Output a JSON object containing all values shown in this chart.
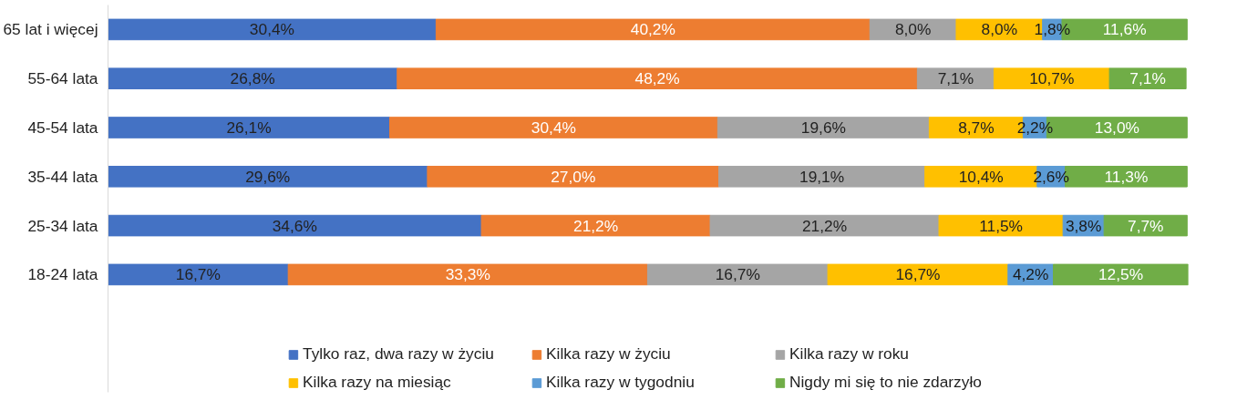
{
  "chart_data": {
    "type": "bar",
    "orientation": "horizontal",
    "stacked": true,
    "legend": "bottom",
    "grid": false,
    "categories": [
      "65 lat i więcej",
      "55-64 lata",
      "45-54 lata",
      "35-44 lata",
      "25-34 lata",
      "18-24 lata"
    ],
    "series": [
      {
        "name": "Tylko raz, dwa razy w życiu",
        "color": "#4472c4",
        "values": [
          30.4,
          26.8,
          26.1,
          29.6,
          34.6,
          16.7
        ],
        "value_labels": [
          "30,4%",
          "26,8%",
          "26,1%",
          "29,6%",
          "34,6%",
          "16,7%"
        ]
      },
      {
        "name": "Kilka razy w życiu",
        "color": "#ed7d31",
        "values": [
          40.2,
          48.2,
          30.4,
          27.0,
          21.2,
          33.3
        ],
        "value_labels": [
          "40,2%",
          "48,2%",
          "30,4%",
          "27,0%",
          "21,2%",
          "33,3%"
        ]
      },
      {
        "name": "Kilka razy w roku",
        "color": "#a5a5a5",
        "values": [
          8.0,
          7.1,
          19.6,
          19.1,
          21.2,
          16.7
        ],
        "value_labels": [
          "8,0%",
          "7,1%",
          "19,6%",
          "19,1%",
          "21,2%",
          "16,7%"
        ]
      },
      {
        "name": "Kilka razy na miesiąc",
        "color": "#ffc000",
        "values": [
          8.0,
          10.7,
          8.7,
          10.4,
          11.5,
          16.7
        ],
        "value_labels": [
          "8,0%",
          "10,7%",
          "8,7%",
          "10,4%",
          "11,5%",
          "16,7%"
        ]
      },
      {
        "name": "Kilka razy w tygodniu",
        "color": "#5b9bd5",
        "values": [
          1.8,
          null,
          2.2,
          2.6,
          3.8,
          4.2
        ],
        "value_labels": [
          "1,8%",
          null,
          "2,2%",
          "2,6%",
          "3,8%",
          "4,2%"
        ]
      },
      {
        "name": "Nigdy mi się to nie zdarzyło",
        "color": "#70ad47",
        "values": [
          11.6,
          7.1,
          13.0,
          11.3,
          7.7,
          12.5
        ],
        "value_labels": [
          "11,6%",
          "7,1%",
          "13,0%",
          "11,3%",
          "7,7%",
          "12,5%"
        ]
      }
    ]
  }
}
